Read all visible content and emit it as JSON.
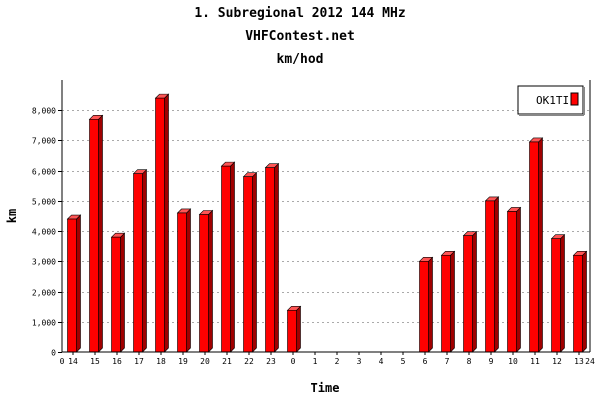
{
  "chart_data": {
    "type": "bar",
    "title": "1. Subregional 2012 144 MHz",
    "subtitle": "VHFContest.net",
    "subtitle2": "km/hod",
    "xlabel": "Time",
    "ylabel": "km",
    "ylim": [
      0,
      9000
    ],
    "yticks": [
      0,
      1000,
      2000,
      3000,
      4000,
      5000,
      6000,
      7000,
      8000
    ],
    "ytick_labels": [
      "0",
      "1,000",
      "2,000",
      "3,000",
      "4,000",
      "5,000",
      "6,000",
      "7,000",
      "8,000"
    ],
    "x_edge_labels": [
      "0",
      "24"
    ],
    "categories": [
      "14",
      "15",
      "16",
      "17",
      "18",
      "19",
      "20",
      "21",
      "22",
      "23",
      "0",
      "1",
      "2",
      "3",
      "4",
      "5",
      "6",
      "7",
      "8",
      "9",
      "10",
      "11",
      "12",
      "13"
    ],
    "series": [
      {
        "name": "OK1TI",
        "color": "#ff0000",
        "values": [
          4400,
          7700,
          3800,
          5900,
          8400,
          4600,
          4550,
          6150,
          5800,
          6100,
          1380,
          0,
          0,
          0,
          0,
          0,
          3000,
          3200,
          3850,
          5000,
          4650,
          6950,
          3750,
          3200
        ]
      }
    ],
    "grid": true,
    "legend_position": "top-right"
  }
}
